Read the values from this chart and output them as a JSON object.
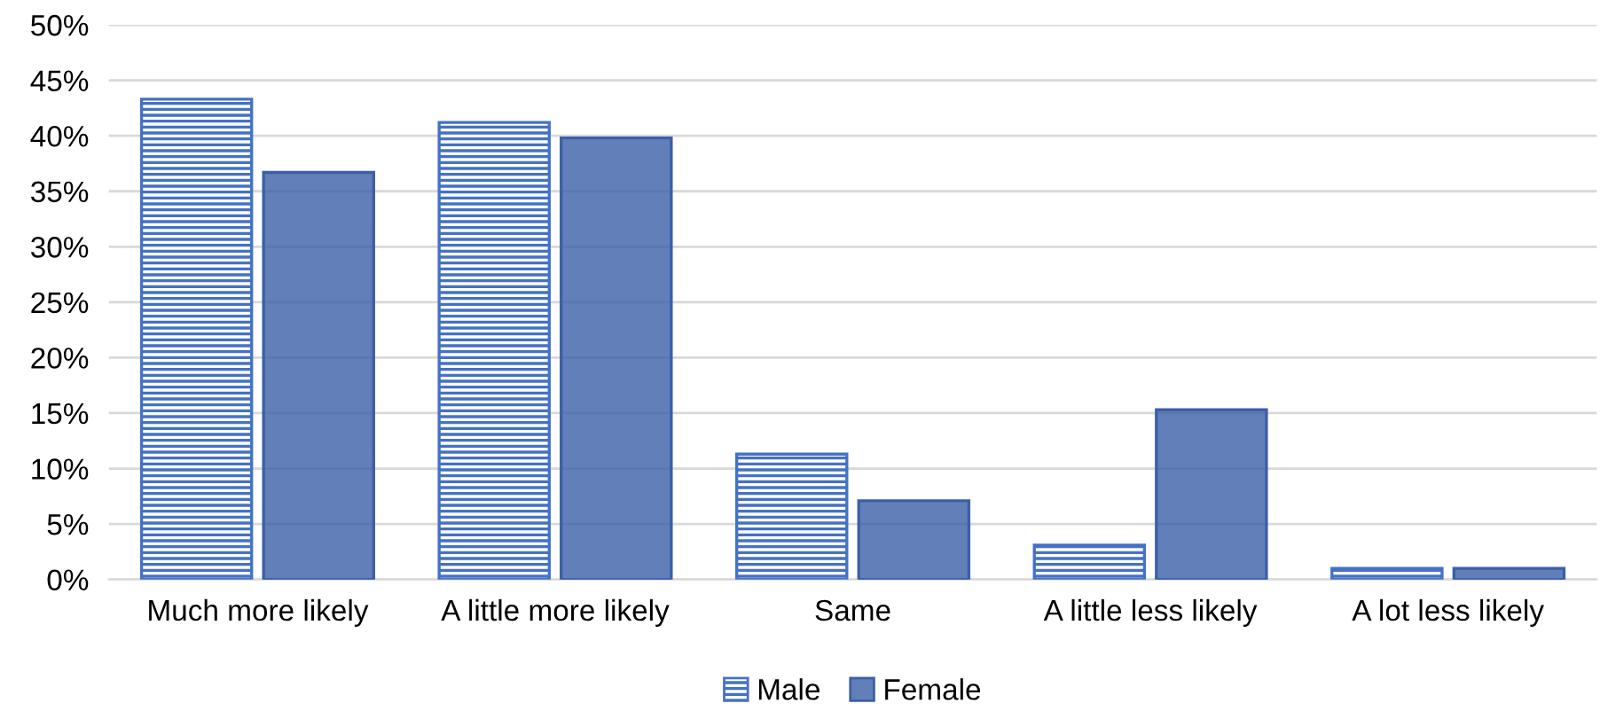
{
  "chart_data": {
    "type": "bar",
    "categories": [
      "Much more likely",
      "A little more likely",
      "Same",
      "A little less likely",
      "A lot less likely"
    ],
    "series": [
      {
        "name": "Male",
        "color": "#4472c4",
        "values": [
          43.3,
          41.2,
          11.3,
          3.1,
          1.0
        ]
      },
      {
        "name": "Female",
        "color": "#3b5fa8",
        "values": [
          36.7,
          39.8,
          7.1,
          15.3,
          1.0
        ]
      }
    ],
    "ylim": [
      0,
      50
    ],
    "yticks": [
      {
        "value": 0,
        "label": "0%"
      },
      {
        "value": 5,
        "label": "5%"
      },
      {
        "value": 10,
        "label": "10%"
      },
      {
        "value": 15,
        "label": "15%"
      },
      {
        "value": 20,
        "label": "20%"
      },
      {
        "value": 25,
        "label": "25%"
      },
      {
        "value": 30,
        "label": "30%"
      },
      {
        "value": 35,
        "label": "35%"
      },
      {
        "value": 40,
        "label": "40%"
      },
      {
        "value": 45,
        "label": "45%"
      },
      {
        "value": 50,
        "label": "50%"
      }
    ],
    "grid": "y",
    "legend": "bottom"
  }
}
